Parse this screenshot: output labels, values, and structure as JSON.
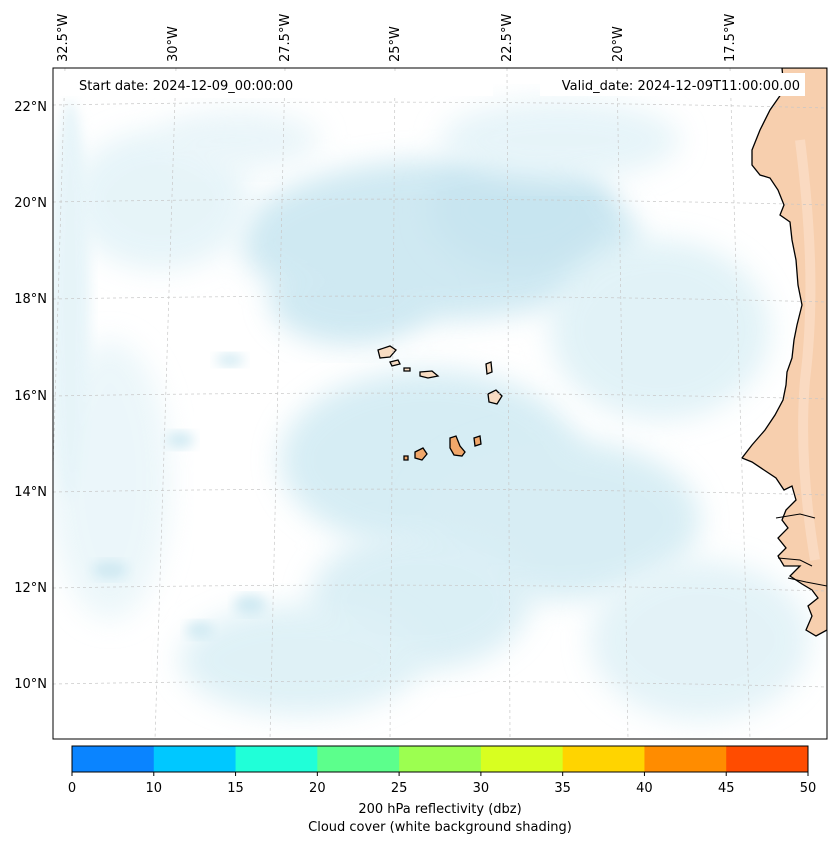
{
  "map": {
    "start_date": "Start date: 2024-12-09_00:00:00",
    "valid_date": "Valid_date: 2024-12-09T11:00:00.00",
    "lon_labels": [
      "32.5°W",
      "30°W",
      "27.5°W",
      "25°W",
      "22.5°W",
      "20°W",
      "17.5°W"
    ],
    "lat_labels": [
      "22°N",
      "20°N",
      "18°N",
      "16°N",
      "14°N",
      "12°N",
      "10°N"
    ],
    "gridlines": true,
    "region": "Cape Verde / West Africa coast",
    "colors": {
      "cloud": "#a9d8e8",
      "land": "#f7cfae",
      "islands": "#f1a76a",
      "coast": "#000000"
    }
  },
  "colorbar": {
    "ticks": [
      "0",
      "10",
      "15",
      "20",
      "25",
      "30",
      "35",
      "40",
      "45",
      "50"
    ],
    "colors": [
      "#0a84ff",
      "#00c8ff",
      "#20ffd8",
      "#5cff8c",
      "#9cff50",
      "#d8ff20",
      "#ffd400",
      "#ff8c00",
      "#ff4c00"
    ],
    "label_line1": "200 hPa reflectivity (dbz)",
    "label_line2": "Cloud cover (white background shading)"
  }
}
